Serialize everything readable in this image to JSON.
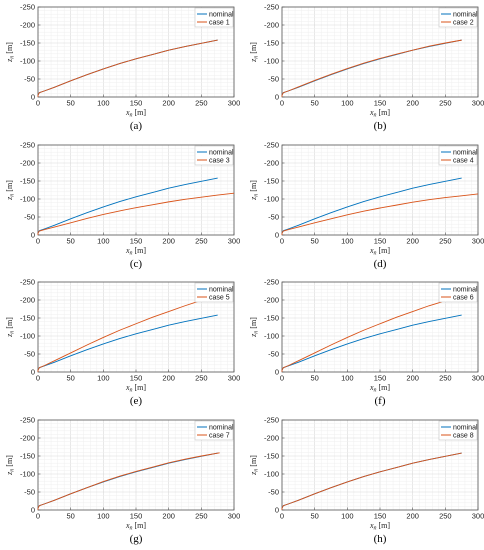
{
  "figure": {
    "panel_labels": [
      "(a)",
      "(b)",
      "(c)",
      "(d)",
      "(e)",
      "(f)",
      "(g)",
      "(h)"
    ]
  },
  "colors": {
    "nominal": "#0072BD",
    "case": "#D95319",
    "grid": "#e6e6e6",
    "axis": "#555555"
  },
  "chart_data": [
    {
      "panel": "(a)",
      "type": "line",
      "xlabel": "x_n [m]",
      "ylabel": "z_n [m]",
      "xlim": [
        0,
        300
      ],
      "ylim": [
        0,
        -250
      ],
      "y_reversed": true,
      "xticks": [
        0,
        50,
        100,
        150,
        200,
        250,
        300
      ],
      "yticks": [
        0,
        -50,
        -100,
        -150,
        -200,
        -250
      ],
      "grid": true,
      "legend": "top-right",
      "series": [
        {
          "name": "nominal",
          "color": "#0072BD",
          "x": [
            0,
            0,
            2,
            10,
            25,
            50,
            75,
            100,
            125,
            150,
            175,
            200,
            225,
            250,
            275
          ],
          "y": [
            0,
            -5,
            -12,
            -17,
            -27,
            -45,
            -62,
            -78,
            -93,
            -106,
            -118,
            -130,
            -140,
            -149,
            -158
          ]
        },
        {
          "name": "case 1",
          "color": "#D95319",
          "x": [
            0,
            0,
            2,
            10,
            25,
            50,
            75,
            100,
            125,
            150,
            175,
            200,
            225,
            250,
            275
          ],
          "y": [
            0,
            -5,
            -12,
            -17,
            -27,
            -45,
            -62,
            -78,
            -93,
            -106,
            -118,
            -130,
            -140,
            -149,
            -158
          ]
        }
      ]
    },
    {
      "panel": "(b)",
      "type": "line",
      "xlabel": "x_n [m]",
      "ylabel": "z_n [m]",
      "xlim": [
        0,
        300
      ],
      "ylim": [
        0,
        -250
      ],
      "y_reversed": true,
      "xticks": [
        0,
        50,
        100,
        150,
        200,
        250,
        300
      ],
      "yticks": [
        0,
        -50,
        -100,
        -150,
        -200,
        -250
      ],
      "grid": true,
      "legend": "top-right",
      "series": [
        {
          "name": "nominal",
          "color": "#0072BD",
          "x": [
            0,
            0,
            2,
            10,
            25,
            50,
            75,
            100,
            125,
            150,
            175,
            200,
            225,
            250,
            275
          ],
          "y": [
            0,
            -5,
            -12,
            -17,
            -27,
            -45,
            -62,
            -78,
            -93,
            -106,
            -118,
            -130,
            -140,
            -149,
            -158
          ]
        },
        {
          "name": "case 2",
          "color": "#D95319",
          "x": [
            0,
            0,
            2,
            10,
            25,
            50,
            75,
            100,
            125,
            150,
            175,
            200,
            225,
            250,
            275
          ],
          "y": [
            0,
            -5,
            -12,
            -17,
            -28,
            -46,
            -63,
            -79,
            -94,
            -107,
            -119,
            -130,
            -141,
            -150,
            -158
          ]
        }
      ]
    },
    {
      "panel": "(c)",
      "type": "line",
      "xlabel": "x_n [m]",
      "ylabel": "z_n [m]",
      "xlim": [
        0,
        300
      ],
      "ylim": [
        0,
        -250
      ],
      "y_reversed": true,
      "xticks": [
        0,
        50,
        100,
        150,
        200,
        250,
        300
      ],
      "yticks": [
        0,
        -50,
        -100,
        -150,
        -200,
        -250
      ],
      "grid": true,
      "legend": "top-right",
      "series": [
        {
          "name": "nominal",
          "color": "#0072BD",
          "x": [
            0,
            0,
            2,
            10,
            25,
            50,
            75,
            100,
            125,
            150,
            175,
            200,
            225,
            250,
            275
          ],
          "y": [
            0,
            -5,
            -12,
            -17,
            -27,
            -45,
            -62,
            -78,
            -93,
            -106,
            -118,
            -130,
            -140,
            -149,
            -158
          ]
        },
        {
          "name": "case 3",
          "color": "#D95319",
          "x": [
            0,
            0,
            2,
            10,
            25,
            50,
            75,
            100,
            125,
            150,
            175,
            200,
            225,
            250,
            275,
            300
          ],
          "y": [
            0,
            -5,
            -11,
            -15,
            -22,
            -34,
            -46,
            -57,
            -67,
            -76,
            -84,
            -92,
            -99,
            -105,
            -111,
            -116
          ]
        }
      ]
    },
    {
      "panel": "(d)",
      "type": "line",
      "xlabel": "x_n [m]",
      "ylabel": "z_n [m]",
      "xlim": [
        0,
        300
      ],
      "ylim": [
        0,
        -250
      ],
      "y_reversed": true,
      "xticks": [
        0,
        50,
        100,
        150,
        200,
        250,
        300
      ],
      "yticks": [
        0,
        -50,
        -100,
        -150,
        -200,
        -250
      ],
      "grid": true,
      "legend": "top-right",
      "series": [
        {
          "name": "nominal",
          "color": "#0072BD",
          "x": [
            0,
            0,
            2,
            10,
            25,
            50,
            75,
            100,
            125,
            150,
            175,
            200,
            225,
            250,
            275
          ],
          "y": [
            0,
            -5,
            -12,
            -17,
            -27,
            -45,
            -62,
            -78,
            -93,
            -106,
            -118,
            -130,
            -140,
            -149,
            -158
          ]
        },
        {
          "name": "case 4",
          "color": "#D95319",
          "x": [
            0,
            0,
            2,
            10,
            25,
            50,
            75,
            100,
            125,
            150,
            175,
            200,
            225,
            250,
            275,
            300
          ],
          "y": [
            0,
            -5,
            -11,
            -15,
            -22,
            -34,
            -45,
            -56,
            -66,
            -75,
            -83,
            -91,
            -98,
            -104,
            -109,
            -114
          ]
        }
      ]
    },
    {
      "panel": "(e)",
      "type": "line",
      "xlabel": "x_n [m]",
      "ylabel": "z_n [m]",
      "xlim": [
        0,
        300
      ],
      "ylim": [
        0,
        -250
      ],
      "y_reversed": true,
      "xticks": [
        0,
        50,
        100,
        150,
        200,
        250,
        300
      ],
      "yticks": [
        0,
        -50,
        -100,
        -150,
        -200,
        -250
      ],
      "grid": true,
      "legend": "top-right",
      "series": [
        {
          "name": "nominal",
          "color": "#0072BD",
          "x": [
            0,
            0,
            2,
            10,
            25,
            50,
            75,
            100,
            125,
            150,
            175,
            200,
            225,
            250,
            275
          ],
          "y": [
            0,
            -5,
            -12,
            -17,
            -27,
            -45,
            -62,
            -78,
            -93,
            -106,
            -118,
            -130,
            -140,
            -149,
            -158
          ]
        },
        {
          "name": "case 5",
          "color": "#D95319",
          "x": [
            0,
            0,
            2,
            10,
            25,
            50,
            75,
            100,
            125,
            150,
            175,
            200,
            225,
            245
          ],
          "y": [
            0,
            -5,
            -12,
            -18,
            -31,
            -53,
            -75,
            -96,
            -116,
            -134,
            -152,
            -168,
            -184,
            -196
          ]
        }
      ]
    },
    {
      "panel": "(f)",
      "type": "line",
      "xlabel": "x_n [m]",
      "ylabel": "z_n [m]",
      "xlim": [
        0,
        300
      ],
      "ylim": [
        0,
        -250
      ],
      "y_reversed": true,
      "xticks": [
        0,
        50,
        100,
        150,
        200,
        250,
        300
      ],
      "yticks": [
        0,
        -50,
        -100,
        -150,
        -200,
        -250
      ],
      "grid": true,
      "legend": "top-right",
      "series": [
        {
          "name": "nominal",
          "color": "#0072BD",
          "x": [
            0,
            0,
            2,
            10,
            25,
            50,
            75,
            100,
            125,
            150,
            175,
            200,
            225,
            250,
            275
          ],
          "y": [
            0,
            -5,
            -12,
            -17,
            -27,
            -45,
            -62,
            -78,
            -93,
            -106,
            -118,
            -130,
            -140,
            -149,
            -158
          ]
        },
        {
          "name": "case 6",
          "color": "#D95319",
          "x": [
            0,
            0,
            2,
            10,
            25,
            50,
            75,
            100,
            125,
            150,
            175,
            200,
            225,
            245
          ],
          "y": [
            0,
            -5,
            -12,
            -18,
            -31,
            -53,
            -75,
            -96,
            -116,
            -134,
            -152,
            -168,
            -184,
            -195
          ]
        }
      ]
    },
    {
      "panel": "(g)",
      "type": "line",
      "xlabel": "x_n [m]",
      "ylabel": "z_n [m]",
      "xlim": [
        0,
        300
      ],
      "ylim": [
        0,
        -250
      ],
      "y_reversed": true,
      "xticks": [
        0,
        50,
        100,
        150,
        200,
        250,
        300
      ],
      "yticks": [
        0,
        -50,
        -100,
        -150,
        -200,
        -250
      ],
      "grid": true,
      "legend": "top-right",
      "series": [
        {
          "name": "nominal",
          "color": "#0072BD",
          "x": [
            0,
            0,
            2,
            10,
            25,
            50,
            75,
            100,
            125,
            150,
            175,
            200,
            225,
            250,
            275
          ],
          "y": [
            0,
            -5,
            -12,
            -17,
            -27,
            -45,
            -62,
            -78,
            -93,
            -106,
            -118,
            -130,
            -140,
            -149,
            -158
          ]
        },
        {
          "name": "case 7",
          "color": "#D95319",
          "x": [
            0,
            0,
            2,
            10,
            25,
            50,
            75,
            100,
            125,
            150,
            175,
            200,
            225,
            250,
            278
          ],
          "y": [
            0,
            -5,
            -12,
            -17,
            -27,
            -45,
            -62,
            -79,
            -94,
            -107,
            -119,
            -131,
            -141,
            -150,
            -159
          ]
        }
      ]
    },
    {
      "panel": "(h)",
      "type": "line",
      "xlabel": "x_n [m]",
      "ylabel": "z_n [m]",
      "xlim": [
        0,
        300
      ],
      "ylim": [
        0,
        -250
      ],
      "y_reversed": true,
      "xticks": [
        0,
        50,
        100,
        150,
        200,
        250,
        300
      ],
      "yticks": [
        0,
        -50,
        -100,
        -150,
        -200,
        -250
      ],
      "grid": true,
      "legend": "top-right",
      "series": [
        {
          "name": "nominal",
          "color": "#0072BD",
          "x": [
            0,
            0,
            2,
            10,
            25,
            50,
            75,
            100,
            125,
            150,
            175,
            200,
            225,
            250,
            275
          ],
          "y": [
            0,
            -5,
            -12,
            -17,
            -27,
            -45,
            -62,
            -78,
            -93,
            -106,
            -118,
            -130,
            -140,
            -149,
            -158
          ]
        },
        {
          "name": "case 8",
          "color": "#D95319",
          "x": [
            0,
            0,
            2,
            10,
            25,
            50,
            75,
            100,
            125,
            150,
            175,
            200,
            225,
            250,
            275
          ],
          "y": [
            0,
            -5,
            -12,
            -17,
            -27,
            -45,
            -62,
            -78,
            -93,
            -106,
            -118,
            -130,
            -140,
            -149,
            -158
          ]
        }
      ]
    }
  ]
}
